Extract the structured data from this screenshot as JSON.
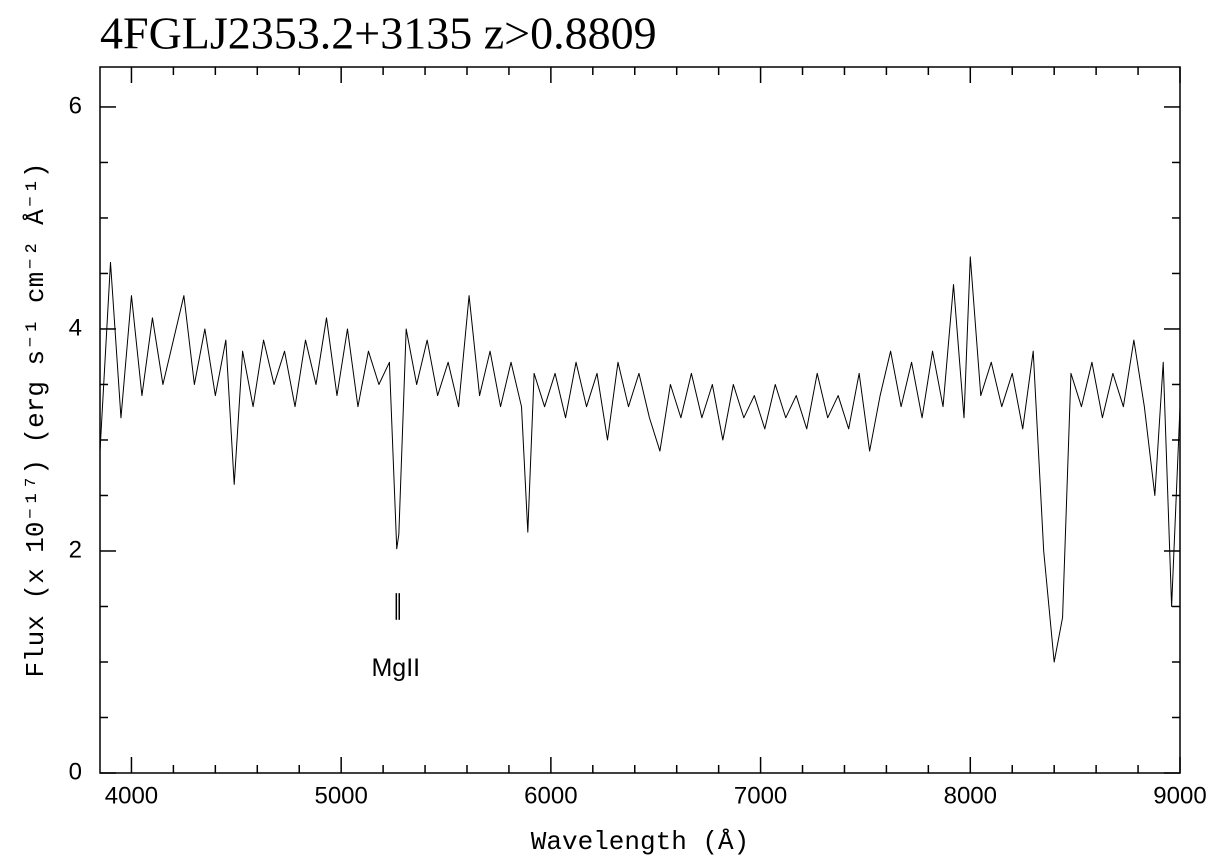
{
  "chart_data": {
    "type": "line",
    "title": "4FGLJ2353.2+3135 z>0.8809",
    "x_label": "Wavelength (Å)",
    "y_label": "Flux (x 10⁻¹⁷) (erg s⁻¹ cm⁻² Å⁻¹)",
    "xlim": [
      3850,
      9000
    ],
    "ylim": [
      0,
      6.36
    ],
    "xticks": [
      4000,
      5000,
      6000,
      7000,
      8000,
      9000
    ],
    "yticks": [
      0,
      2,
      4,
      6
    ],
    "xminorticks": [
      4200,
      4400,
      4600,
      4800,
      5200,
      5400,
      5600,
      5800,
      6200,
      6400,
      6600,
      6800,
      7200,
      7400,
      7600,
      7800,
      8200,
      8400,
      8600,
      8800
    ],
    "yminorticks": [
      0.5,
      1,
      1.5,
      2.5,
      3,
      3.5,
      4.5,
      5,
      5.5
    ],
    "color": "#000000",
    "x": [
      3850,
      3900,
      3950,
      4000,
      4050,
      4100,
      4150,
      4200,
      4250,
      4300,
      4350,
      4400,
      4450,
      4490,
      4530,
      4580,
      4630,
      4680,
      4730,
      4780,
      4830,
      4880,
      4930,
      4980,
      5030,
      5080,
      5130,
      5180,
      5230,
      5265,
      5275,
      5310,
      5360,
      5410,
      5460,
      5510,
      5560,
      5610,
      5660,
      5710,
      5760,
      5810,
      5860,
      5890,
      5920,
      5970,
      6020,
      6070,
      6120,
      6170,
      6220,
      6270,
      6320,
      6370,
      6420,
      6470,
      6520,
      6570,
      6620,
      6670,
      6720,
      6770,
      6820,
      6870,
      6920,
      6970,
      7020,
      7070,
      7120,
      7170,
      7220,
      7270,
      7320,
      7370,
      7420,
      7470,
      7520,
      7570,
      7620,
      7670,
      7720,
      7770,
      7820,
      7870,
      7920,
      7970,
      8000,
      8050,
      8100,
      8150,
      8200,
      8250,
      8300,
      8350,
      8400,
      8440,
      8480,
      8530,
      8580,
      8630,
      8680,
      8730,
      8780,
      8830,
      8880,
      8920,
      8960,
      9000
    ],
    "values": [
      2.9,
      4.6,
      3.2,
      4.3,
      3.4,
      4.1,
      3.5,
      3.9,
      4.3,
      3.5,
      4.0,
      3.4,
      3.9,
      2.6,
      3.8,
      3.3,
      3.9,
      3.5,
      3.8,
      3.3,
      3.9,
      3.5,
      4.1,
      3.4,
      4.0,
      3.3,
      3.8,
      3.5,
      3.7,
      2.02,
      2.15,
      4.0,
      3.5,
      3.9,
      3.4,
      3.7,
      3.3,
      4.3,
      3.4,
      3.8,
      3.3,
      3.7,
      3.3,
      2.17,
      3.6,
      3.3,
      3.6,
      3.2,
      3.7,
      3.3,
      3.6,
      3.0,
      3.7,
      3.3,
      3.6,
      3.2,
      2.9,
      3.5,
      3.2,
      3.6,
      3.2,
      3.5,
      3.0,
      3.5,
      3.2,
      3.4,
      3.1,
      3.5,
      3.2,
      3.4,
      3.1,
      3.6,
      3.2,
      3.4,
      3.1,
      3.6,
      2.9,
      3.4,
      3.8,
      3.3,
      3.7,
      3.2,
      3.8,
      3.3,
      4.4,
      3.2,
      4.65,
      3.4,
      3.7,
      3.3,
      3.6,
      3.1,
      3.8,
      2.0,
      1.0,
      1.4,
      3.6,
      3.3,
      3.7,
      3.2,
      3.6,
      3.3,
      3.9,
      3.3,
      2.5,
      3.7,
      1.5,
      3.3
    ],
    "annotations": [
      {
        "text": "MgII",
        "x": 5270,
        "y": 0.95
      }
    ],
    "line_markers": [
      {
        "x": 5263,
        "y": [
          1.38,
          1.62
        ]
      },
      {
        "x": 5277,
        "y": [
          1.38,
          1.62
        ]
      }
    ]
  }
}
